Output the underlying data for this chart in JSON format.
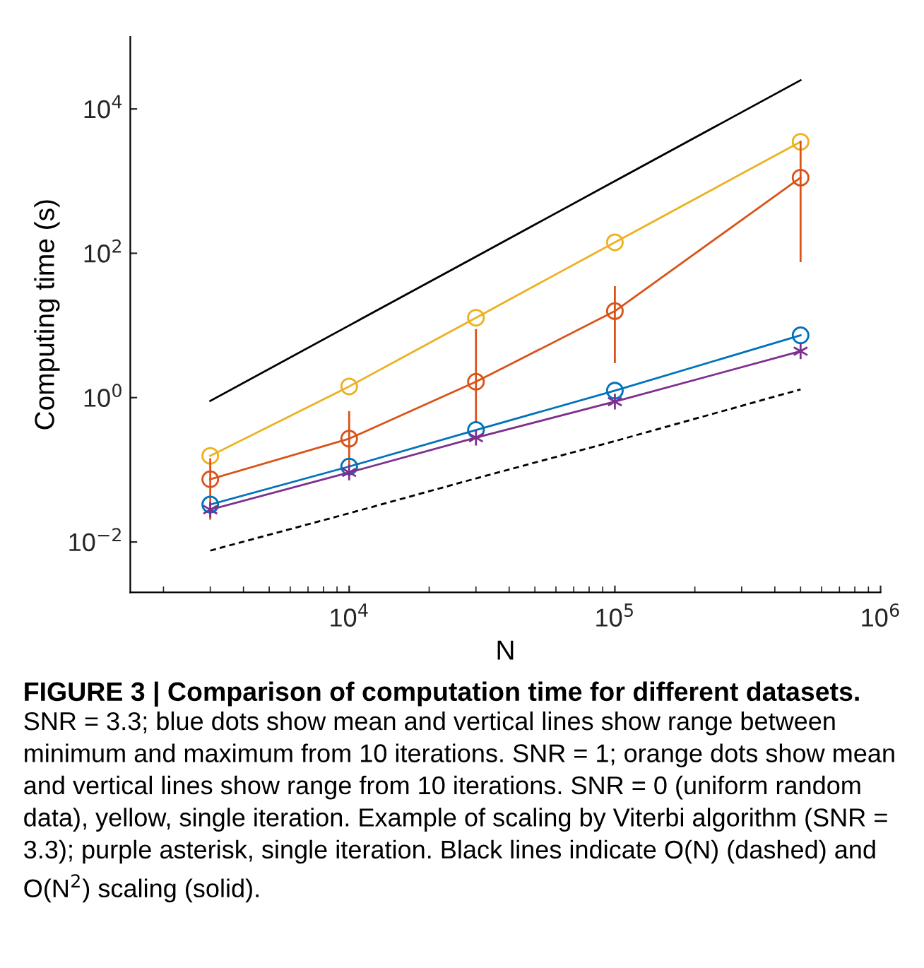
{
  "chart_data": {
    "type": "line",
    "title": "FIGURE 3 | Comparison of computation time for different datasets.",
    "xlabel": "N",
    "ylabel": "Computing time (s)",
    "x": [
      3000,
      10000,
      30000,
      100000,
      500000
    ],
    "log": "xy",
    "xlim": [
      1500,
      1000000
    ],
    "ylim": [
      0.002,
      100000
    ],
    "xticks": [
      {
        "value": 10000,
        "label": "10$^{4}$"
      },
      {
        "value": 100000,
        "label": "10$^{5}$"
      },
      {
        "value": 1000000,
        "label": "10$^{6}$"
      }
    ],
    "yticks": [
      {
        "value": 0.01,
        "label": "10$^{−2}$"
      },
      {
        "value": 1,
        "label": "10$^{0}$"
      },
      {
        "value": 100,
        "label": "10$^{2}$"
      },
      {
        "value": 10000,
        "label": "10$^{4}$"
      }
    ],
    "grid": false,
    "series": [
      {
        "color": "#000000",
        "values": [
          0.9,
          10,
          90,
          1000,
          25000
        ],
        "marker": "none",
        "line_style": "solid"
      },
      {
        "color": "#edb120",
        "values": [
          0.156,
          1.43,
          12.8,
          142,
          3510
        ],
        "marker": "circle",
        "line_style": "solid"
      },
      {
        "color": "#d95319",
        "values": [
          0.074,
          0.27,
          1.66,
          15.8,
          1117
        ],
        "errors": [
          [
            0.021,
            0.14
          ],
          [
            0.12,
            0.63
          ],
          [
            0.46,
            8.65
          ],
          [
            3.1,
            34
          ],
          [
            78,
            3510
          ]
        ],
        "marker": "circle",
        "line_style": "solid"
      },
      {
        "color": "#0072bd",
        "values": [
          0.033,
          0.111,
          0.356,
          1.25,
          7.3
        ],
        "marker": "circle",
        "line_style": "solid"
      },
      {
        "color": "#7e2f8e",
        "values": [
          0.028,
          0.092,
          0.279,
          0.88,
          4.4
        ],
        "marker": "cross",
        "line_style": "solid"
      },
      {
        "color": "#000000",
        "values": [
          0.0076,
          0.025,
          0.076,
          0.25,
          1.3
        ],
        "marker": "none",
        "line_style": "dashed"
      }
    ],
    "annotations": [
      "SNR = 3.3; blue dots show mean and vertical lines show range between minimum and maximum from 10 iterations. SNR = 1; orange dots show mean and vertical lines show range from 10 iterations. SNR = 0 (uniform random data), yellow, single iteration. Example of scaling by Viterbi algorithm (SNR = 3.3); purple asterisk, single iteration. Black lines indicate O(N) (dashed) and O(N$^{2}$) scaling (solid)."
    ]
  }
}
